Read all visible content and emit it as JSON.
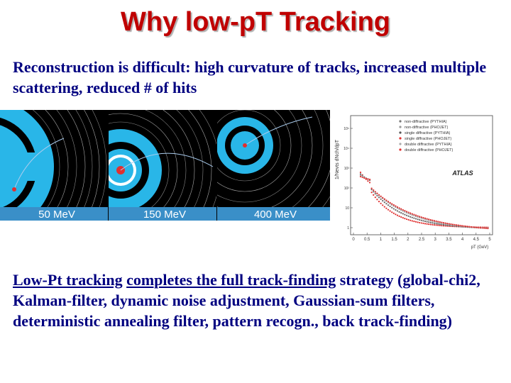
{
  "title": "Why low-pT Tracking",
  "intro_text": "Reconstruction is difficult:  high curvature of tracks, increased multiple scattering, reduced # of hits",
  "tracking_text": {
    "underlined_1": "Low-Pt tracking",
    "plain_1": " ",
    "underlined_2": "completes the full track-finding",
    "plain_2": " strategy (global-chi2, Kalman-filter, dynamic noise adjustment, Gaussian-sum filters, deterministic annealing filter, pattern recogn., back track-finding)"
  },
  "event_panels": [
    {
      "energy_label": "50 MeV"
    },
    {
      "energy_label": "150 MeV"
    },
    {
      "energy_label": "400 MeV"
    }
  ],
  "plot": {
    "ylabel": "1/Nevts dNch/dpT",
    "xlabel": "pT (GeV)",
    "watermark": "ATLAS",
    "x_ticks": [
      "0",
      "0.5",
      "1",
      "1.5",
      "2",
      "2.5",
      "3",
      "3.5",
      "4",
      "4.5",
      "5"
    ],
    "y_ticks": [
      "10⁵",
      "10⁴",
      "10³",
      "10²",
      "10",
      "1"
    ],
    "legend": [
      "non-diffractive (PYTHIA)",
      "non-diffractive (PHOJET)",
      "single diffractive (PYTHIA)",
      "single diffractive (PHOJET)",
      "double diffractive (PYTHIA)",
      "double diffractive (PHOJET)"
    ]
  },
  "colors": {
    "title": "#c00000",
    "text": "#000080",
    "detector_blue": "#29b6e8",
    "track": "#e03030",
    "label_bg": "#3a8fc8"
  }
}
